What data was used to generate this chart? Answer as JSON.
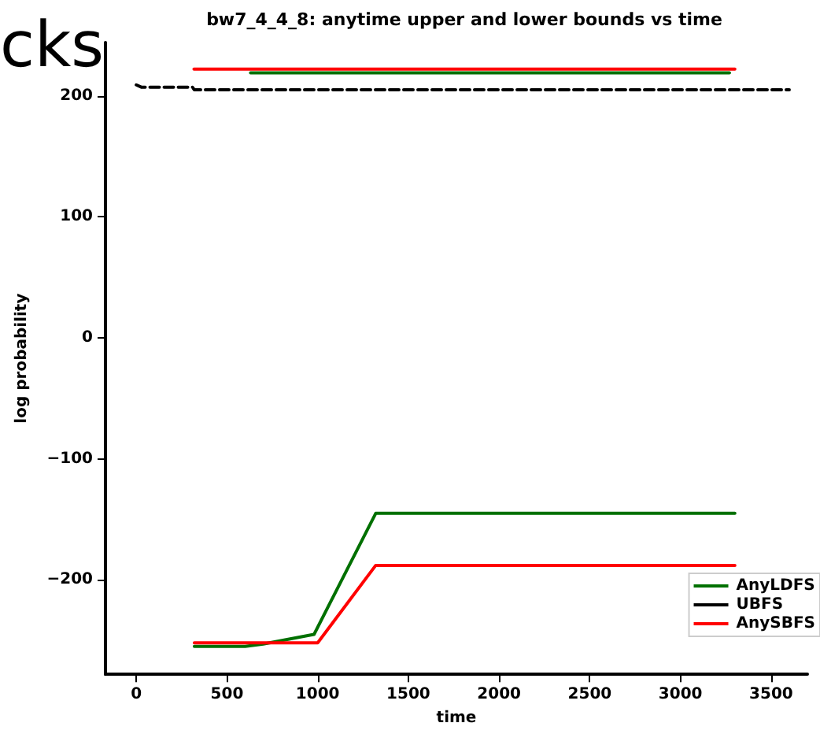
{
  "chart_data": {
    "type": "line",
    "title": "bw7_4_4_8: anytime upper and lower bounds vs time",
    "xlabel": "time",
    "ylabel": "log probability",
    "annotations": [
      "cks"
    ],
    "xlim": [
      -170,
      3700
    ],
    "xticks": [
      0,
      500,
      1000,
      1500,
      2000,
      2500,
      3000,
      3500
    ],
    "ylim": [
      -278,
      244
    ],
    "yticks": [
      -200,
      -100,
      0,
      100,
      200
    ],
    "grid": false,
    "legend": "bottom right",
    "series": [
      {
        "name": "AnyLDFS",
        "color": "#007000",
        "line_style": "solid",
        "x": [
          320,
          600,
          700,
          980,
          1320,
          3300
        ],
        "values": [
          -255,
          -255,
          -253,
          -245,
          -145,
          -145
        ]
      },
      {
        "color": "#007000",
        "line_style": "solid",
        "x": [
          630,
          3270
        ],
        "values": [
          219,
          219
        ]
      },
      {
        "name": "UBFS",
        "color": "#000000",
        "line_style": "dashed",
        "x": [
          0,
          30,
          310,
          320,
          3600
        ],
        "values": [
          209,
          207,
          207,
          205,
          205
        ]
      },
      {
        "name": "AnySBFS",
        "color": "#ff0000",
        "line_style": "solid",
        "x": [
          320,
          1000,
          1320,
          3300
        ],
        "values": [
          -252,
          -252,
          -188,
          -188
        ]
      },
      {
        "color": "#ff0000",
        "line_style": "solid",
        "x": [
          318,
          3300
        ],
        "values": [
          222,
          222
        ]
      }
    ]
  }
}
